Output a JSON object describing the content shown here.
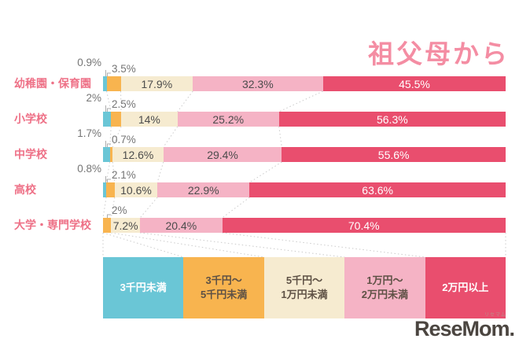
{
  "title": "祖父母から",
  "logo": {
    "text": "ReseMom.",
    "kana": "リセマム"
  },
  "colors": {
    "cyan": "#6ac6d6",
    "orange": "#f8b44f",
    "cream": "#f6ebd0",
    "pink": "#f5b3c5",
    "red": "#e94e6e",
    "category_label": "#ee7187",
    "title_pink": "#f48da3",
    "inbar_dark_text": "#4c4c4c",
    "inbar_light_text": "#ffffff",
    "callout_text": "#757575",
    "legend_dark_text": "#5e5145",
    "dotted_line": "#cbcbcb",
    "connector_line": "#adadad"
  },
  "legend_items": [
    {
      "label": "3千円未満",
      "lines": [
        "3千円未満"
      ],
      "color": "#6ac6d6",
      "text_color": "#ffffff"
    },
    {
      "label": "3千円〜5千円未満",
      "lines": [
        "3千円〜",
        "5千円未満"
      ],
      "color": "#f8b44f",
      "text_color": "#5e5145"
    },
    {
      "label": "5千円〜1万円未満",
      "lines": [
        "5千円〜",
        "1万円未満"
      ],
      "color": "#f6ebd0",
      "text_color": "#5e5145"
    },
    {
      "label": "1万円〜2万円未満",
      "lines": [
        "1万円〜",
        "2万円未満"
      ],
      "color": "#f5b3c5",
      "text_color": "#5e5145"
    },
    {
      "label": "2万円以上",
      "lines": [
        "2万円以上"
      ],
      "color": "#e94e6e",
      "text_color": "#ffffff"
    }
  ],
  "chart_data": {
    "type": "bar",
    "stacked": true,
    "orientation": "horizontal",
    "unit": "%",
    "title": "祖父母から",
    "legend_position": "bottom",
    "xlim": [
      0,
      100
    ],
    "categories": [
      "幼稚園・保育園",
      "小学校",
      "中学校",
      "高校",
      "大学・専門学校"
    ],
    "series": [
      {
        "name": "3千円未満",
        "color": "#6ac6d6",
        "values": [
          0.9,
          2.0,
          1.7,
          0.8,
          0.0
        ]
      },
      {
        "name": "3千円〜5千円未満",
        "color": "#f8b44f",
        "values": [
          3.5,
          2.5,
          0.7,
          2.1,
          2.0
        ]
      },
      {
        "name": "5千円〜1万円未満",
        "color": "#f6ebd0",
        "values": [
          17.9,
          14.0,
          12.6,
          10.6,
          7.2
        ]
      },
      {
        "name": "1万円〜2万円未満",
        "color": "#f5b3c5",
        "values": [
          32.3,
          25.2,
          29.4,
          22.9,
          20.4
        ]
      },
      {
        "name": "2万円以上",
        "color": "#e94e6e",
        "values": [
          45.5,
          56.3,
          55.6,
          63.6,
          70.4
        ]
      }
    ],
    "value_labels": [
      [
        "0.9%",
        "3.5%",
        "17.9%",
        "32.3%",
        "45.5%"
      ],
      [
        "2%",
        "2.5%",
        "14%",
        "25.2%",
        "56.3%"
      ],
      [
        "1.7%",
        "0.7%",
        "12.6%",
        "29.4%",
        "55.6%"
      ],
      [
        "0.8%",
        "2.1%",
        "10.6%",
        "22.9%",
        "63.6%"
      ],
      [
        "",
        "2%",
        "7.2%",
        "20.4%",
        "70.4%"
      ]
    ]
  }
}
